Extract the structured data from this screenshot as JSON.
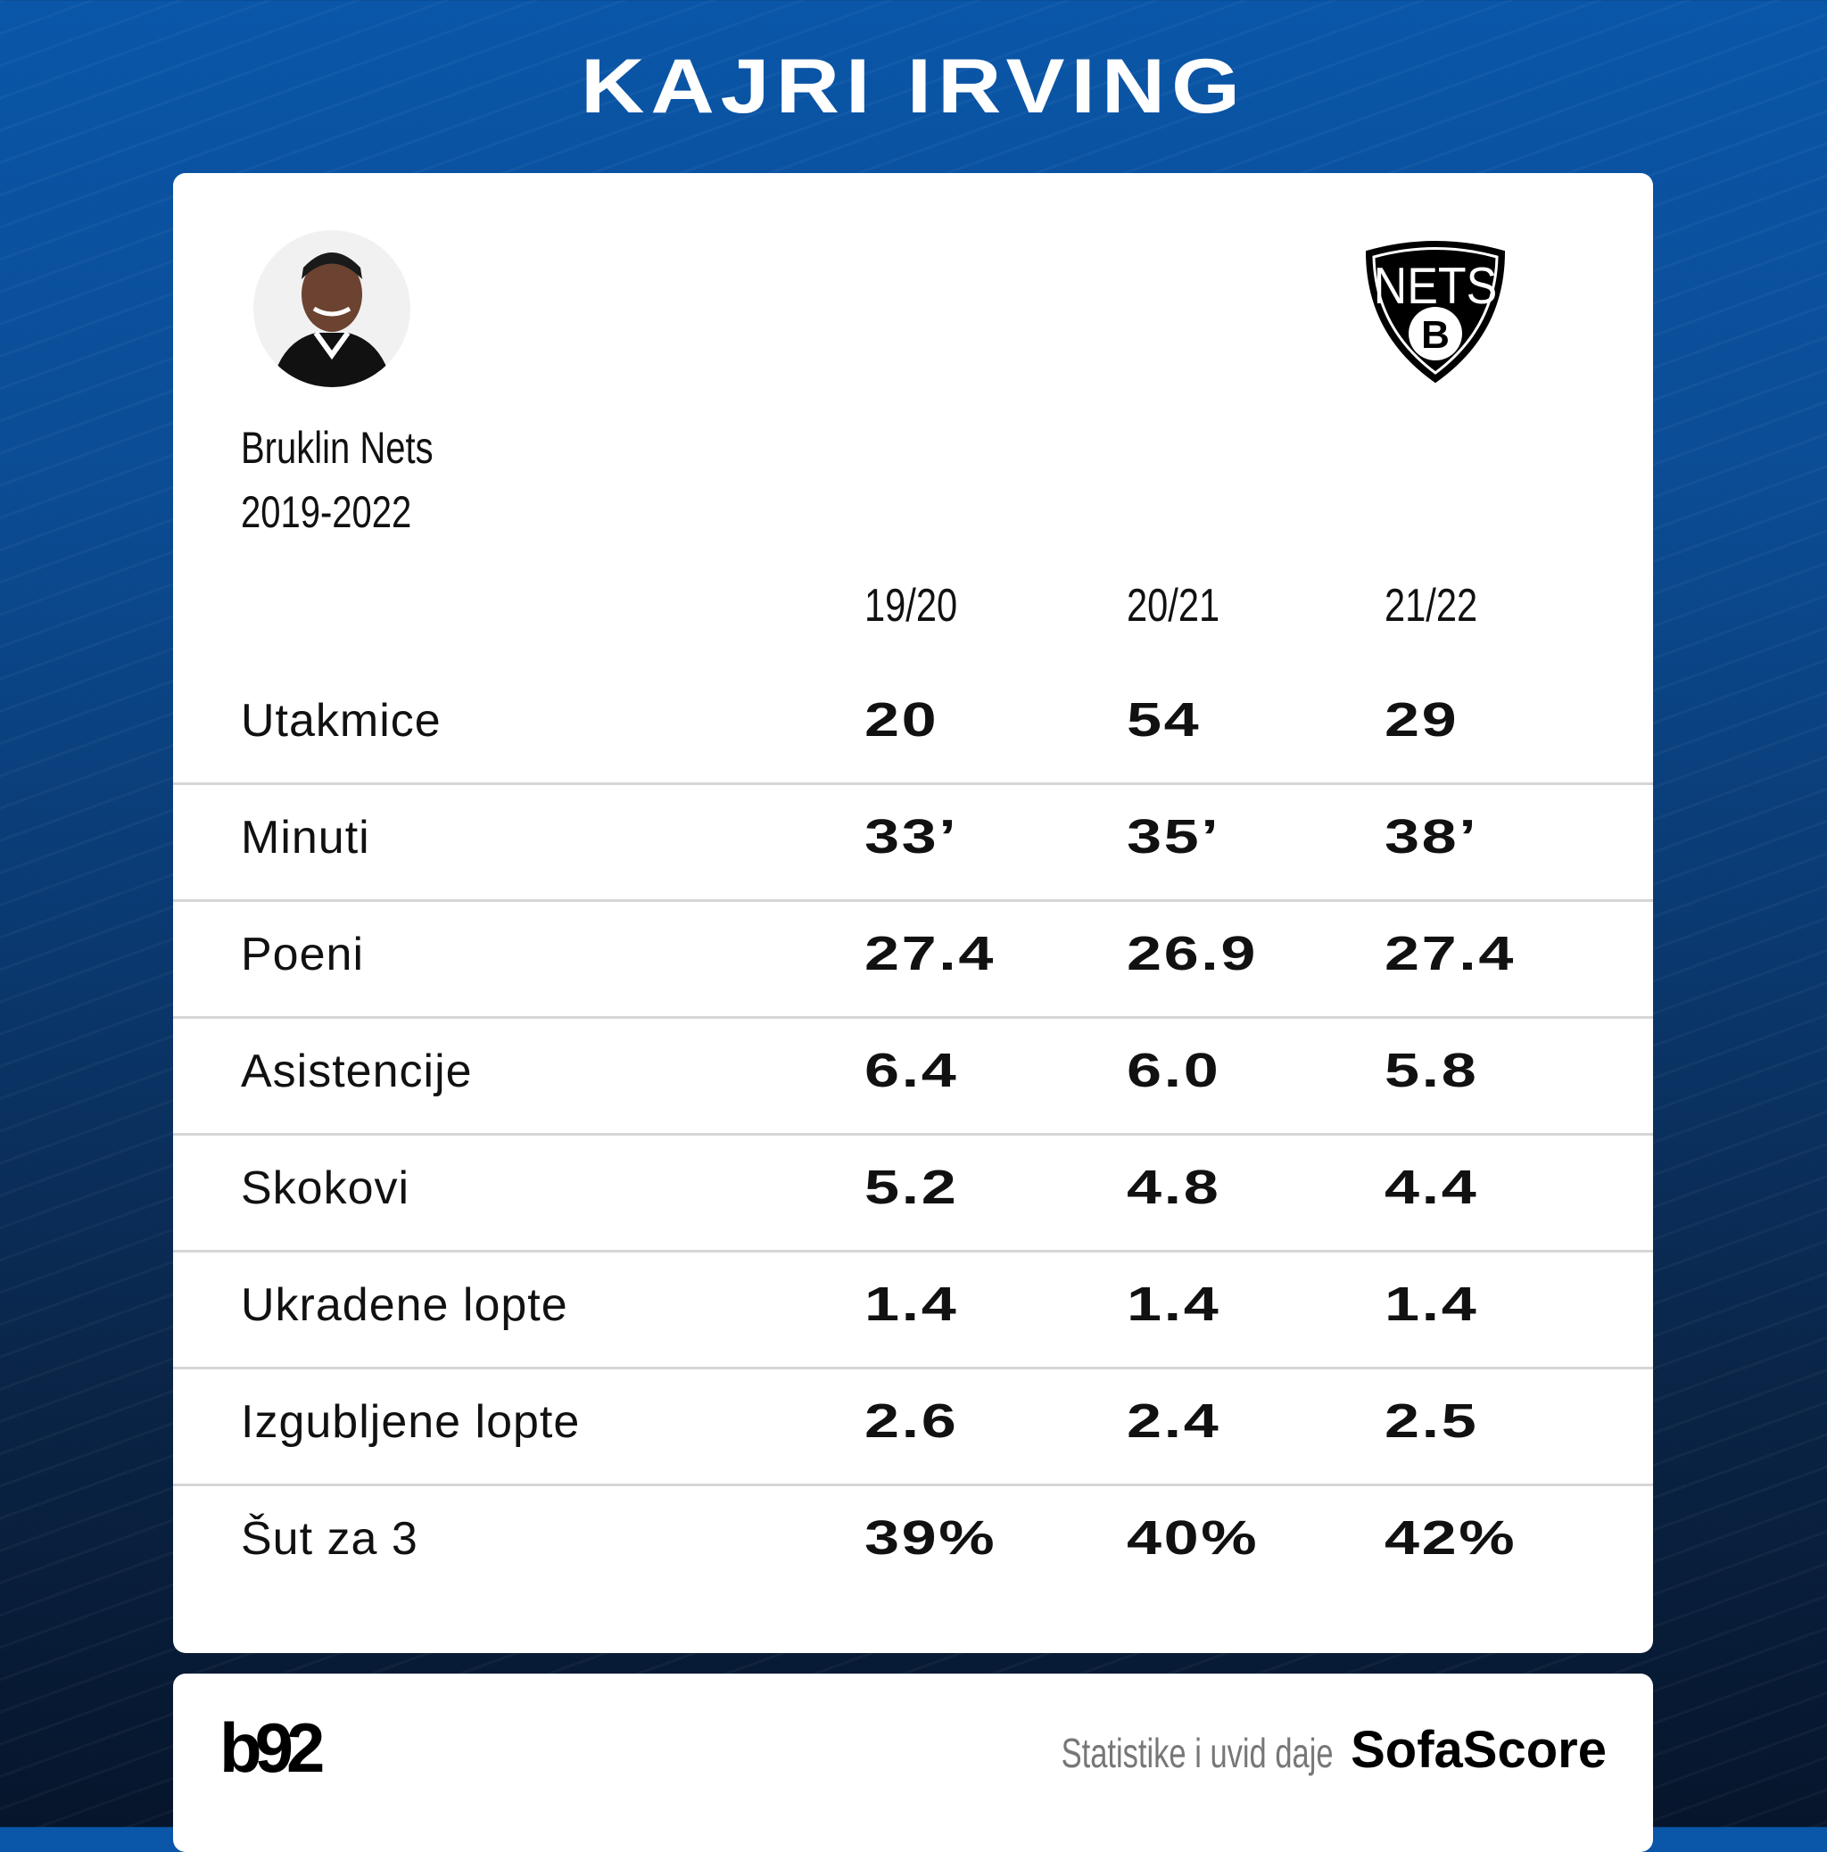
{
  "title": "KAJRI IRVING",
  "team": {
    "name": "Bruklin Nets",
    "years": "2019-2022",
    "logo_text": "NETS",
    "logo_letter": "B"
  },
  "seasons": [
    "19/20",
    "20/21",
    "21/22"
  ],
  "rows": [
    {
      "label": "Utakmice",
      "values": [
        "20",
        "54",
        "29"
      ]
    },
    {
      "label": "Minuti",
      "values": [
        "33’",
        "35’",
        "38’"
      ]
    },
    {
      "label": "Poeni",
      "values": [
        "27.4",
        "26.9",
        "27.4"
      ]
    },
    {
      "label": "Asistencije",
      "values": [
        "6.4",
        "6.0",
        "5.8"
      ]
    },
    {
      "label": "Skokovi",
      "values": [
        "5.2",
        "4.8",
        "4.4"
      ]
    },
    {
      "label": "Ukradene lopte",
      "values": [
        "1.4",
        "1.4",
        "1.4"
      ]
    },
    {
      "label": "Izgubljene lopte",
      "values": [
        "2.6",
        "2.4",
        "2.5"
      ]
    },
    {
      "label": "Šut za 3",
      "values": [
        "39%",
        "40%",
        "42%"
      ]
    }
  ],
  "footer": {
    "brand": "b92",
    "credit": "Statistike i uvid daje",
    "provider": "SofaScore"
  }
}
